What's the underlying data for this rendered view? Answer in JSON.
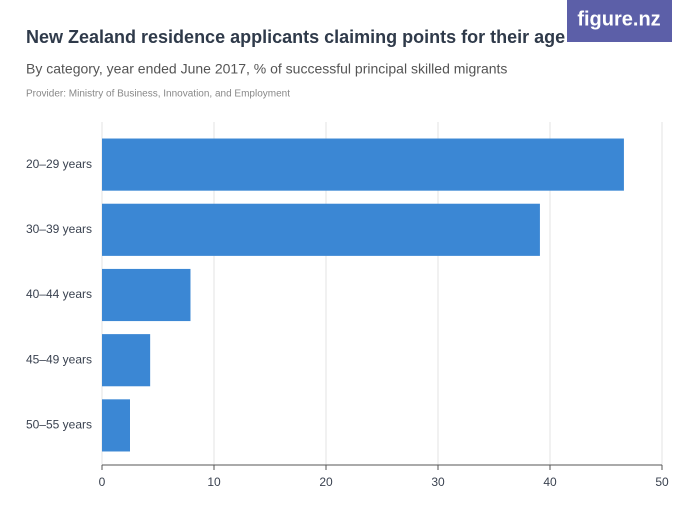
{
  "logo": "figure.nz",
  "chart_data": {
    "type": "bar",
    "orientation": "horizontal",
    "title": "New Zealand residence applicants claiming points for their age",
    "subtitle": "By category, year ended June 2017, % of successful principal skilled migrants",
    "provider": "Provider: Ministry of Business, Innovation, and Employment",
    "categories": [
      "20–29 years",
      "30–39 years",
      "40–44 years",
      "45–49 years",
      "50–55 years"
    ],
    "values": [
      46.6,
      39.1,
      7.9,
      4.3,
      2.5
    ],
    "color": "#3b87d4",
    "xlim": [
      0,
      50
    ],
    "xticks": [
      0,
      10,
      20,
      30,
      40,
      50
    ],
    "grid": true
  }
}
